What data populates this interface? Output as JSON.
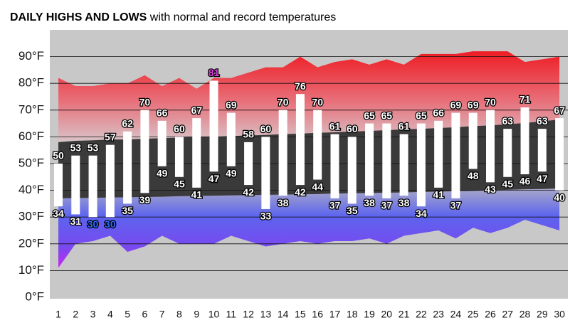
{
  "chart_data": {
    "type": "range_bar",
    "title": "DAILY HIGHS AND LOWS",
    "subtitle": "with normal and record temperatures",
    "categories": [
      "1",
      "2",
      "3",
      "4",
      "5",
      "6",
      "7",
      "8",
      "9",
      "10",
      "11",
      "12",
      "13",
      "14",
      "15",
      "16",
      "17",
      "18",
      "19",
      "20",
      "21",
      "22",
      "23",
      "24",
      "25",
      "26",
      "27",
      "28",
      "29",
      "30"
    ],
    "highs": [
      50,
      53,
      53,
      57,
      62,
      70,
      66,
      60,
      67,
      81,
      69,
      58,
      60,
      70,
      76,
      70,
      61,
      60,
      65,
      65,
      61,
      65,
      66,
      69,
      69,
      70,
      63,
      71,
      63,
      67
    ],
    "lows": [
      34,
      31,
      30,
      30,
      35,
      39,
      49,
      45,
      41,
      47,
      49,
      42,
      33,
      38,
      42,
      44,
      37,
      35,
      38,
      37,
      38,
      34,
      41,
      37,
      48,
      43,
      45,
      46,
      47,
      40
    ],
    "high_label_colors": [
      null,
      null,
      null,
      null,
      null,
      null,
      null,
      null,
      null,
      "#e040e0",
      null,
      null,
      null,
      null,
      null,
      null,
      null,
      null,
      null,
      null,
      null,
      null,
      null,
      null,
      null,
      null,
      null,
      null,
      null,
      null
    ],
    "low_label_colors": [
      null,
      null,
      "#2f6bff",
      "#2f6bff",
      null,
      null,
      null,
      null,
      null,
      null,
      null,
      null,
      null,
      null,
      null,
      null,
      null,
      null,
      null,
      null,
      null,
      null,
      null,
      null,
      null,
      null,
      null,
      null,
      null,
      null
    ],
    "record_high": [
      82,
      79,
      79,
      80,
      80,
      83,
      79,
      82,
      78,
      82,
      82,
      84,
      86,
      86,
      90,
      86,
      88,
      89,
      87,
      89,
      87,
      91,
      91,
      91,
      92,
      92,
      92,
      88,
      89,
      90
    ],
    "normal_high": [
      58,
      58.5,
      58.7,
      59,
      59,
      59.3,
      59.5,
      59.7,
      60,
      60,
      60.3,
      60.5,
      60.7,
      61,
      61.2,
      61.5,
      61.7,
      62,
      62.2,
      62.5,
      62.8,
      63,
      63.3,
      63.6,
      64,
      64.3,
      64.7,
      65.2,
      65.8,
      66.5
    ],
    "normal_low": [
      37,
      37.1,
      37.2,
      37.3,
      37.4,
      37.5,
      37.6,
      37.8,
      37.9,
      38,
      38.1,
      38.2,
      38.3,
      38.4,
      38.5,
      38.6,
      38.8,
      38.9,
      39,
      39.1,
      39.2,
      39.4,
      39.5,
      39.7,
      39.8,
      40,
      40.2,
      40.4,
      40.5,
      40.7
    ],
    "record_low": [
      11,
      20,
      21,
      23,
      17,
      19,
      23,
      20,
      20,
      20,
      23,
      21,
      19,
      20,
      21,
      20,
      21,
      21,
      22,
      20,
      23,
      24,
      25,
      22,
      26,
      24,
      26,
      29,
      27,
      25
    ],
    "bar_color": "#ffffff",
    "normal_color": "#3a3a3a",
    "ylim": [
      0,
      100
    ],
    "yticks": [
      {
        "value": 0,
        "label": "0°F"
      },
      {
        "value": 10,
        "label": "10°F"
      },
      {
        "value": 20,
        "label": "20°F"
      },
      {
        "value": 30,
        "label": "30°F"
      },
      {
        "value": 40,
        "label": "40°F"
      },
      {
        "value": 50,
        "label": "50°F"
      },
      {
        "value": 60,
        "label": "60°F"
      },
      {
        "value": 70,
        "label": "70°F"
      },
      {
        "value": 80,
        "label": "80°F"
      },
      {
        "value": 90,
        "label": "90°F"
      }
    ],
    "grid": true
  }
}
